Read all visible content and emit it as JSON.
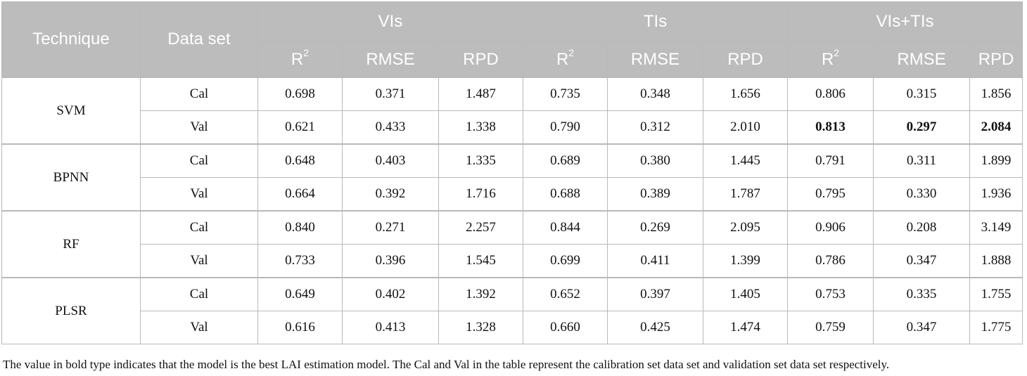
{
  "header": {
    "technique": "Technique",
    "data_set": "Data set",
    "groups": [
      "VIs",
      "TIs",
      "VIs+TIs"
    ],
    "sub": {
      "r": "R",
      "sq": "2",
      "rmse": "RMSE",
      "rpd": "RPD"
    }
  },
  "rows": [
    {
      "technique": "SVM",
      "set": "Cal",
      "values": [
        "0.698",
        "0.371",
        "1.487",
        "0.735",
        "0.348",
        "1.656",
        "0.806",
        "0.315",
        "1.856"
      ],
      "bold": [
        false,
        false,
        false,
        false,
        false,
        false,
        false,
        false,
        false
      ]
    },
    {
      "technique": "SVM",
      "set": "Val",
      "values": [
        "0.621",
        "0.433",
        "1.338",
        "0.790",
        "0.312",
        "2.010",
        "0.813",
        "0.297",
        "2.084"
      ],
      "bold": [
        false,
        false,
        false,
        false,
        false,
        false,
        true,
        true,
        true
      ]
    },
    {
      "technique": "BPNN",
      "set": "Cal",
      "values": [
        "0.648",
        "0.403",
        "1.335",
        "0.689",
        "0.380",
        "1.445",
        "0.791",
        "0.311",
        "1.899"
      ],
      "bold": [
        false,
        false,
        false,
        false,
        false,
        false,
        false,
        false,
        false
      ]
    },
    {
      "technique": "BPNN",
      "set": "Val",
      "values": [
        "0.664",
        "0.392",
        "1.716",
        "0.688",
        "0.389",
        "1.787",
        "0.795",
        "0.330",
        "1.936"
      ],
      "bold": [
        false,
        false,
        false,
        false,
        false,
        false,
        false,
        false,
        false
      ]
    },
    {
      "technique": "RF",
      "set": "Cal",
      "values": [
        "0.840",
        "0.271",
        "2.257",
        "0.844",
        "0.269",
        "2.095",
        "0.906",
        "0.208",
        "3.149"
      ],
      "bold": [
        false,
        false,
        false,
        false,
        false,
        false,
        false,
        false,
        false
      ]
    },
    {
      "technique": "RF",
      "set": "Val",
      "values": [
        "0.733",
        "0.396",
        "1.545",
        "0.699",
        "0.411",
        "1.399",
        "0.786",
        "0.347",
        "1.888"
      ],
      "bold": [
        false,
        false,
        false,
        false,
        false,
        false,
        false,
        false,
        false
      ]
    },
    {
      "technique": "PLSR",
      "set": "Cal",
      "values": [
        "0.649",
        "0.402",
        "1.392",
        "0.652",
        "0.397",
        "1.405",
        "0.753",
        "0.335",
        "1.755"
      ],
      "bold": [
        false,
        false,
        false,
        false,
        false,
        false,
        false,
        false,
        false
      ]
    },
    {
      "technique": "PLSR",
      "set": "Val",
      "values": [
        "0.616",
        "0.413",
        "1.328",
        "0.660",
        "0.425",
        "1.474",
        "0.759",
        "0.347",
        "1.775"
      ],
      "bold": [
        false,
        false,
        false,
        false,
        false,
        false,
        false,
        false,
        false
      ]
    }
  ],
  "note": "The value in bold type indicates that the model is the best LAI estimation model. The Cal and Val in the table represent the calibration set data set and validation set data set respectively.",
  "colors": {
    "header_bg": "#bcbcbc",
    "header_text": "#ffffff",
    "border": "#b9b9b9"
  }
}
